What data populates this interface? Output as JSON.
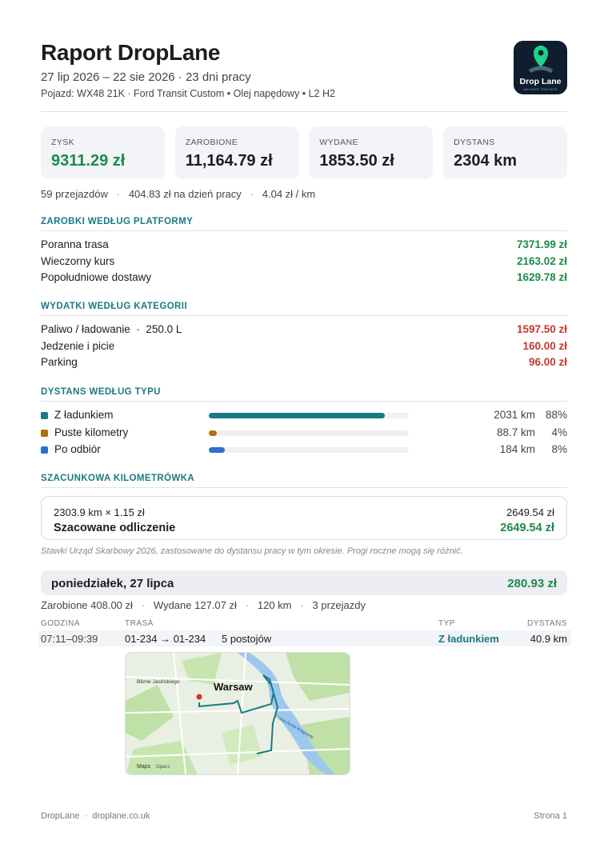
{
  "header": {
    "title": "Raport DropLane",
    "period": "27 lip 2026 – 22 sie 2026 · 23 dni pracy",
    "vehicle": "Pojazd: WX48 21K · Ford Transit Custom • Olej napędowy • L2 H2",
    "logo": {
      "name": "Drop Lane",
      "tagline": "MILEAGE TRACKER"
    }
  },
  "kpis": [
    {
      "label": "ZYSK",
      "value": "9311.29 zł"
    },
    {
      "label": "ZAROBIONE",
      "value": "11,164.79 zł"
    },
    {
      "label": "WYDANE",
      "value": "1853.50 zł"
    },
    {
      "label": "DYSTANS",
      "value": "2304 km"
    }
  ],
  "summary": [
    "59 przejazdów",
    "404.83 zł na dzień pracy",
    "4.04 zł / km"
  ],
  "earnings_by_platform": {
    "title": "ZAROBKI WEDŁUG PLATFORMY",
    "rows": [
      {
        "name": "Poranna trasa",
        "amount": "7371.99 zł"
      },
      {
        "name": "Wieczorny kurs",
        "amount": "2163.02 zł"
      },
      {
        "name": "Popołudniowe dostawy",
        "amount": "1629.78 zł"
      }
    ]
  },
  "expenses_by_category": {
    "title": "WYDATKI WEDŁUG KATEGORII",
    "rows": [
      {
        "name": "Paliwo / ładowanie",
        "detail": "250.0 L",
        "amount": "1597.50 zł"
      },
      {
        "name": "Jedzenie i picie",
        "amount": "160.00 zł"
      },
      {
        "name": "Parking",
        "amount": "96.00 zł"
      }
    ]
  },
  "distance_by_type": {
    "title": "DYSTANS WEDŁUG TYPU",
    "rows": [
      {
        "name": "Z ładunkiem",
        "color": "#1a7a84",
        "distance": "2031 km",
        "share": {
          "value": 88,
          "label": "88%"
        }
      },
      {
        "name": "Puste kilometry",
        "color": "#b06f12",
        "distance": "88.7 km",
        "share": {
          "value": 4,
          "label": "4%"
        }
      },
      {
        "name": "Po odbiór",
        "color": "#2a6fd1",
        "distance": "184 km",
        "share": {
          "value": 8,
          "label": "8%"
        }
      }
    ]
  },
  "mileage_estimate": {
    "title": "SZACUNKOWA KILOMETRÓWKA",
    "formula": "2303.9 km × 1.15 zł",
    "formula_amount": "2649.54 zł",
    "deduction_label": "Szacowane odliczenie",
    "deduction_amount": "2649.54 zł",
    "note": "Stawki Urząd Skarbowy 2026, zastosowane do dystansu pracy w tym okresie. Progi roczne mogą się różnić."
  },
  "day": {
    "title": "poniedziałek, 27 lipca",
    "total": "280.93 zł",
    "stats": [
      "Zarobione 408.00 zł",
      "Wydane 127.07 zł",
      "120 km",
      "3 przejazdy"
    ],
    "columns": [
      "GODZINA",
      "TRASA",
      "TYP",
      "DYSTANS"
    ],
    "trips": [
      {
        "time": "07:11–09:39",
        "route": "01-234 → 01-234",
        "stops": "5 postojów",
        "type": "Z ładunkiem",
        "distance": "40.9 km"
      }
    ],
    "map_labels": [
      "Warsaw",
      "Blizne Jasińskiego",
      "Trasa Armii Krajowej",
      "Maps",
      "Opacz"
    ]
  },
  "footer": {
    "left": [
      "DropLane",
      "droplane.co.uk"
    ],
    "right": "Strona 1"
  }
}
